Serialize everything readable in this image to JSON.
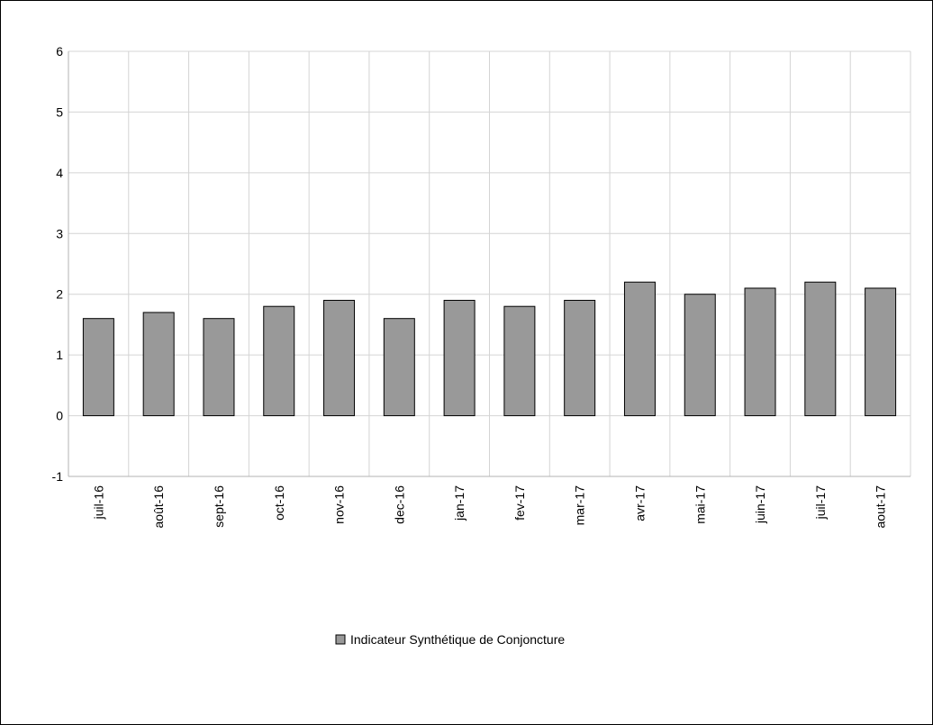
{
  "chart_data": {
    "type": "bar",
    "title": "",
    "xlabel": "",
    "ylabel": "",
    "categories": [
      "juil-16",
      "août-16",
      "sept-16",
      "oct-16",
      "nov-16",
      "dec-16",
      "jan-17",
      "fev-17",
      "mar-17",
      "avr-17",
      "mai-17",
      "juin-17",
      "juil-17",
      "aout-17"
    ],
    "series": [
      {
        "name": "Indicateur Synthétique de Conjoncture",
        "values": [
          1.6,
          1.7,
          1.6,
          1.8,
          1.9,
          1.6,
          1.9,
          1.8,
          1.9,
          2.2,
          2.0,
          2.1,
          2.2,
          2.1
        ],
        "color": "#999999"
      }
    ],
    "ylim": [
      -1,
      6
    ],
    "yticks": [
      -1,
      0,
      1,
      2,
      3,
      4,
      5,
      6
    ],
    "grid": true,
    "legend_position": "bottom-center"
  }
}
